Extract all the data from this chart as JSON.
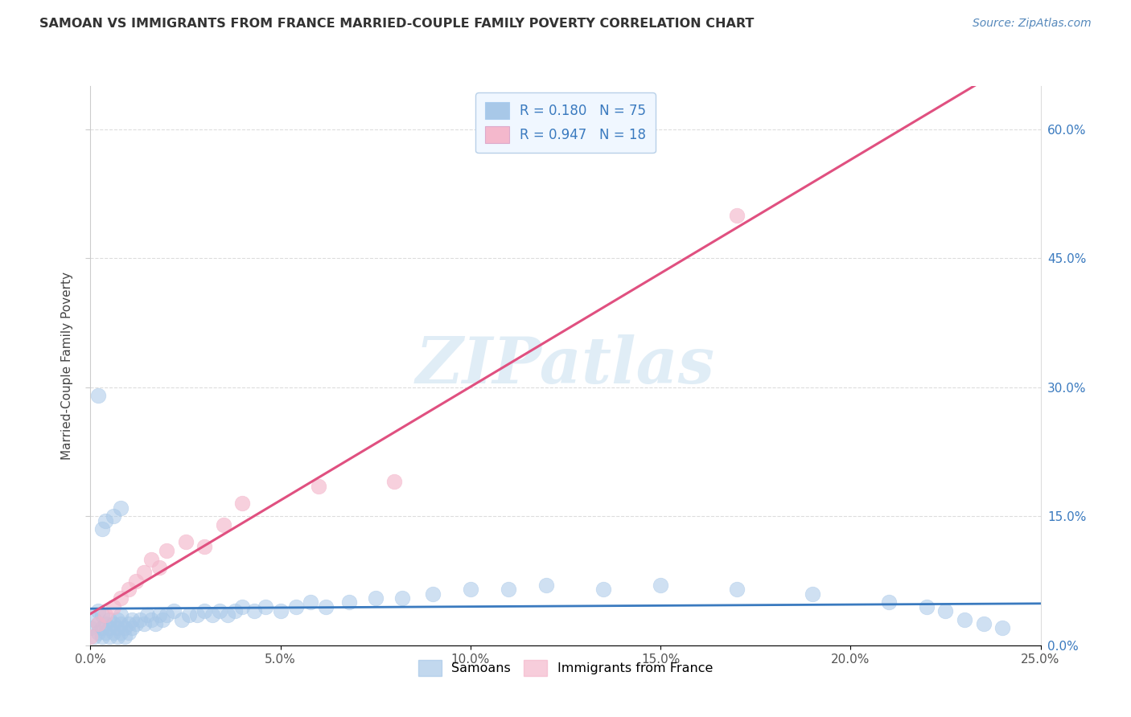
{
  "title": "SAMOAN VS IMMIGRANTS FROM FRANCE MARRIED-COUPLE FAMILY POVERTY CORRELATION CHART",
  "source": "Source: ZipAtlas.com",
  "ylabel": "Married-Couple Family Poverty",
  "xlim": [
    0.0,
    0.25
  ],
  "ylim": [
    0.0,
    0.65
  ],
  "xticks": [
    0.0,
    0.05,
    0.1,
    0.15,
    0.2,
    0.25
  ],
  "yticks": [
    0.0,
    0.15,
    0.3,
    0.45,
    0.6
  ],
  "xtick_labels": [
    "0.0%",
    "5.0%",
    "10.0%",
    "15.0%",
    "20.0%",
    "25.0%"
  ],
  "ytick_labels": [
    "0.0%",
    "15.0%",
    "30.0%",
    "45.0%",
    "60.0%"
  ],
  "samoan_R": 0.18,
  "samoan_N": 75,
  "france_R": 0.947,
  "france_N": 18,
  "samoan_color": "#a8c8e8",
  "france_color": "#f4b8cc",
  "samoan_line_color": "#3a7abf",
  "france_line_color": "#e05080",
  "watermark": "ZIPatlas",
  "samoan_x": [
    0.0,
    0.001,
    0.001,
    0.002,
    0.002,
    0.002,
    0.003,
    0.003,
    0.003,
    0.004,
    0.004,
    0.005,
    0.005,
    0.005,
    0.006,
    0.006,
    0.007,
    0.007,
    0.007,
    0.008,
    0.008,
    0.008,
    0.009,
    0.009,
    0.01,
    0.01,
    0.011,
    0.011,
    0.012,
    0.013,
    0.014,
    0.015,
    0.016,
    0.017,
    0.018,
    0.019,
    0.02,
    0.022,
    0.024,
    0.026,
    0.028,
    0.03,
    0.032,
    0.034,
    0.036,
    0.038,
    0.04,
    0.043,
    0.046,
    0.05,
    0.054,
    0.058,
    0.062,
    0.068,
    0.075,
    0.082,
    0.09,
    0.1,
    0.11,
    0.12,
    0.135,
    0.15,
    0.17,
    0.19,
    0.21,
    0.22,
    0.225,
    0.23,
    0.235,
    0.24,
    0.002,
    0.003,
    0.004,
    0.006,
    0.008
  ],
  "samoan_y": [
    0.02,
    0.01,
    0.03,
    0.015,
    0.025,
    0.04,
    0.01,
    0.02,
    0.035,
    0.015,
    0.025,
    0.01,
    0.02,
    0.03,
    0.015,
    0.025,
    0.01,
    0.02,
    0.03,
    0.015,
    0.025,
    0.035,
    0.01,
    0.02,
    0.015,
    0.025,
    0.02,
    0.03,
    0.025,
    0.03,
    0.025,
    0.035,
    0.03,
    0.025,
    0.035,
    0.03,
    0.035,
    0.04,
    0.03,
    0.035,
    0.035,
    0.04,
    0.035,
    0.04,
    0.035,
    0.04,
    0.045,
    0.04,
    0.045,
    0.04,
    0.045,
    0.05,
    0.045,
    0.05,
    0.055,
    0.055,
    0.06,
    0.065,
    0.065,
    0.07,
    0.065,
    0.07,
    0.065,
    0.06,
    0.05,
    0.045,
    0.04,
    0.03,
    0.025,
    0.02,
    0.29,
    0.135,
    0.145,
    0.15,
    0.16
  ],
  "france_x": [
    0.0,
    0.002,
    0.004,
    0.006,
    0.008,
    0.01,
    0.012,
    0.014,
    0.016,
    0.018,
    0.02,
    0.025,
    0.03,
    0.035,
    0.04,
    0.06,
    0.08,
    0.17
  ],
  "france_y": [
    0.01,
    0.025,
    0.035,
    0.045,
    0.055,
    0.065,
    0.075,
    0.085,
    0.1,
    0.09,
    0.11,
    0.12,
    0.115,
    0.14,
    0.165,
    0.185,
    0.19,
    0.5
  ]
}
